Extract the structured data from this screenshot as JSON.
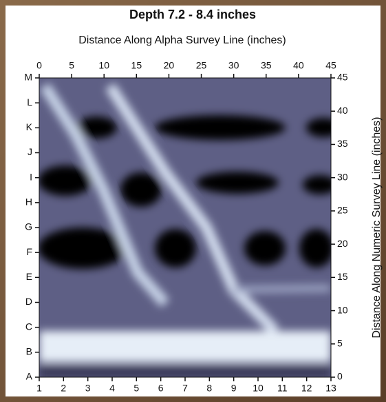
{
  "chart_data": {
    "type": "contour",
    "title": "Depth 7.2 - 8.4 inches",
    "xlabel": "Distance Along Alpha Survey Line (inches)",
    "ylabel": "Distance Along Numeric Survey Line (inches)",
    "xlim": [
      0,
      45
    ],
    "xticks": [
      0,
      5,
      10,
      15,
      20,
      25,
      30,
      35,
      40,
      45
    ],
    "ylim": [
      0,
      45
    ],
    "yticks": [
      0,
      5,
      10,
      15,
      20,
      25,
      30,
      35,
      40,
      45
    ],
    "bottom_categories": [
      "1",
      "2",
      "3",
      "4",
      "5",
      "6",
      "7",
      "8",
      "9",
      "10",
      "11",
      "12",
      "13"
    ],
    "left_categories": [
      "A",
      "B",
      "C",
      "D",
      "E",
      "F",
      "G",
      "H",
      "I",
      "J",
      "K",
      "L",
      "M"
    ]
  }
}
